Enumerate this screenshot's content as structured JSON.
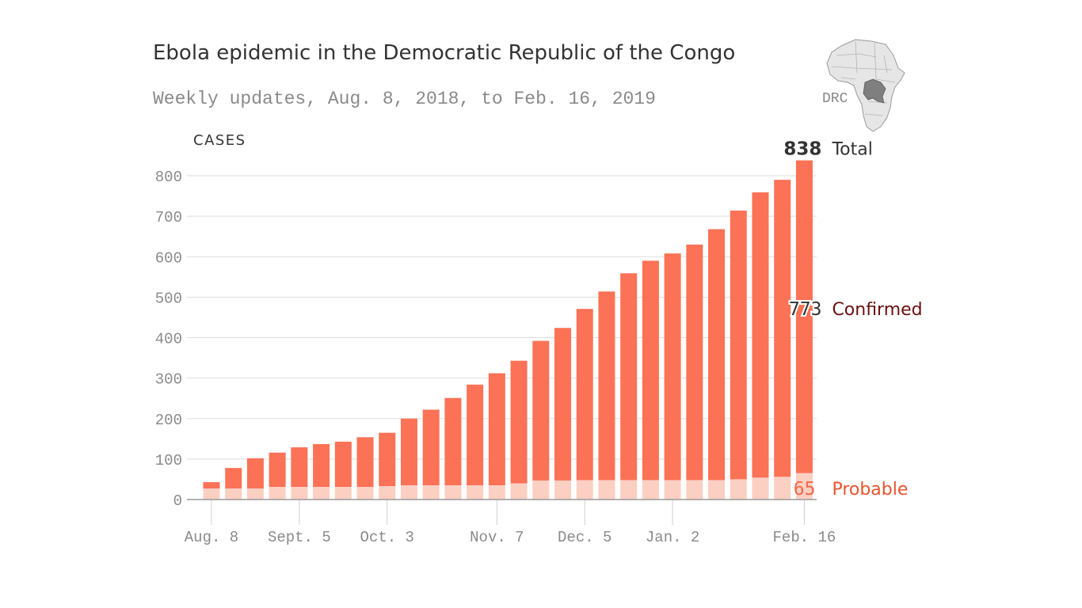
{
  "colors": {
    "confirmed": "#fb7256",
    "probable": "#fccfc3",
    "grid": "#dddddd",
    "axis": "#999999",
    "map_land": "#e6e6e6",
    "map_border": "#9a9a9a",
    "map_drc": "#7f7f7f"
  },
  "map": {
    "label": "DRC",
    "icon": "africa-map-icon"
  },
  "chart_data": {
    "type": "bar",
    "stacked": true,
    "title": "Ebola epidemic in the Democratic Republic of the Congo",
    "subtitle": "Weekly updates, Aug. 8, 2018, to Feb. 16, 2019",
    "ylabel": "CASES",
    "ylim": [
      0,
      800
    ],
    "yticks": [
      0,
      100,
      200,
      300,
      400,
      500,
      600,
      700,
      800
    ],
    "grid": true,
    "categories": [
      "Aug. 8",
      "",
      "",
      "",
      "Sept. 5",
      "",
      "",
      "",
      "Oct. 3",
      "",
      "",
      "",
      "",
      "Nov. 7",
      "",
      "",
      "",
      "Dec. 5",
      "",
      "",
      "",
      "Jan. 2",
      "",
      "",
      "",
      "",
      "",
      "Feb. 16"
    ],
    "x_tick_labels": [
      "Aug. 8",
      "Sept. 5",
      "Oct. 3",
      "Nov. 7",
      "Dec. 5",
      "Jan. 2",
      "Feb. 16"
    ],
    "series": [
      {
        "name": "Probable",
        "values": [
          27,
          27,
          27,
          31,
          31,
          31,
          31,
          31,
          33,
          35,
          35,
          35,
          35,
          35,
          40,
          47,
          47,
          48,
          48,
          48,
          48,
          48,
          48,
          48,
          50,
          54,
          56,
          65
        ]
      },
      {
        "name": "Confirmed",
        "values": [
          16,
          51,
          75,
          85,
          98,
          106,
          112,
          123,
          132,
          165,
          187,
          216,
          249,
          277,
          303,
          345,
          377,
          423,
          466,
          511,
          542,
          560,
          582,
          620,
          664,
          705,
          734,
          773
        ]
      }
    ],
    "totals": [
      43,
      78,
      102,
      116,
      129,
      137,
      143,
      154,
      165,
      200,
      222,
      251,
      284,
      312,
      343,
      392,
      424,
      471,
      514,
      559,
      590,
      608,
      630,
      668,
      714,
      759,
      790,
      838
    ],
    "annotations": {
      "total_value": "838",
      "total_label": "Total",
      "confirmed_value": "773",
      "confirmed_label": "Confirmed",
      "probable_value": "65",
      "probable_label": "Probable"
    }
  }
}
